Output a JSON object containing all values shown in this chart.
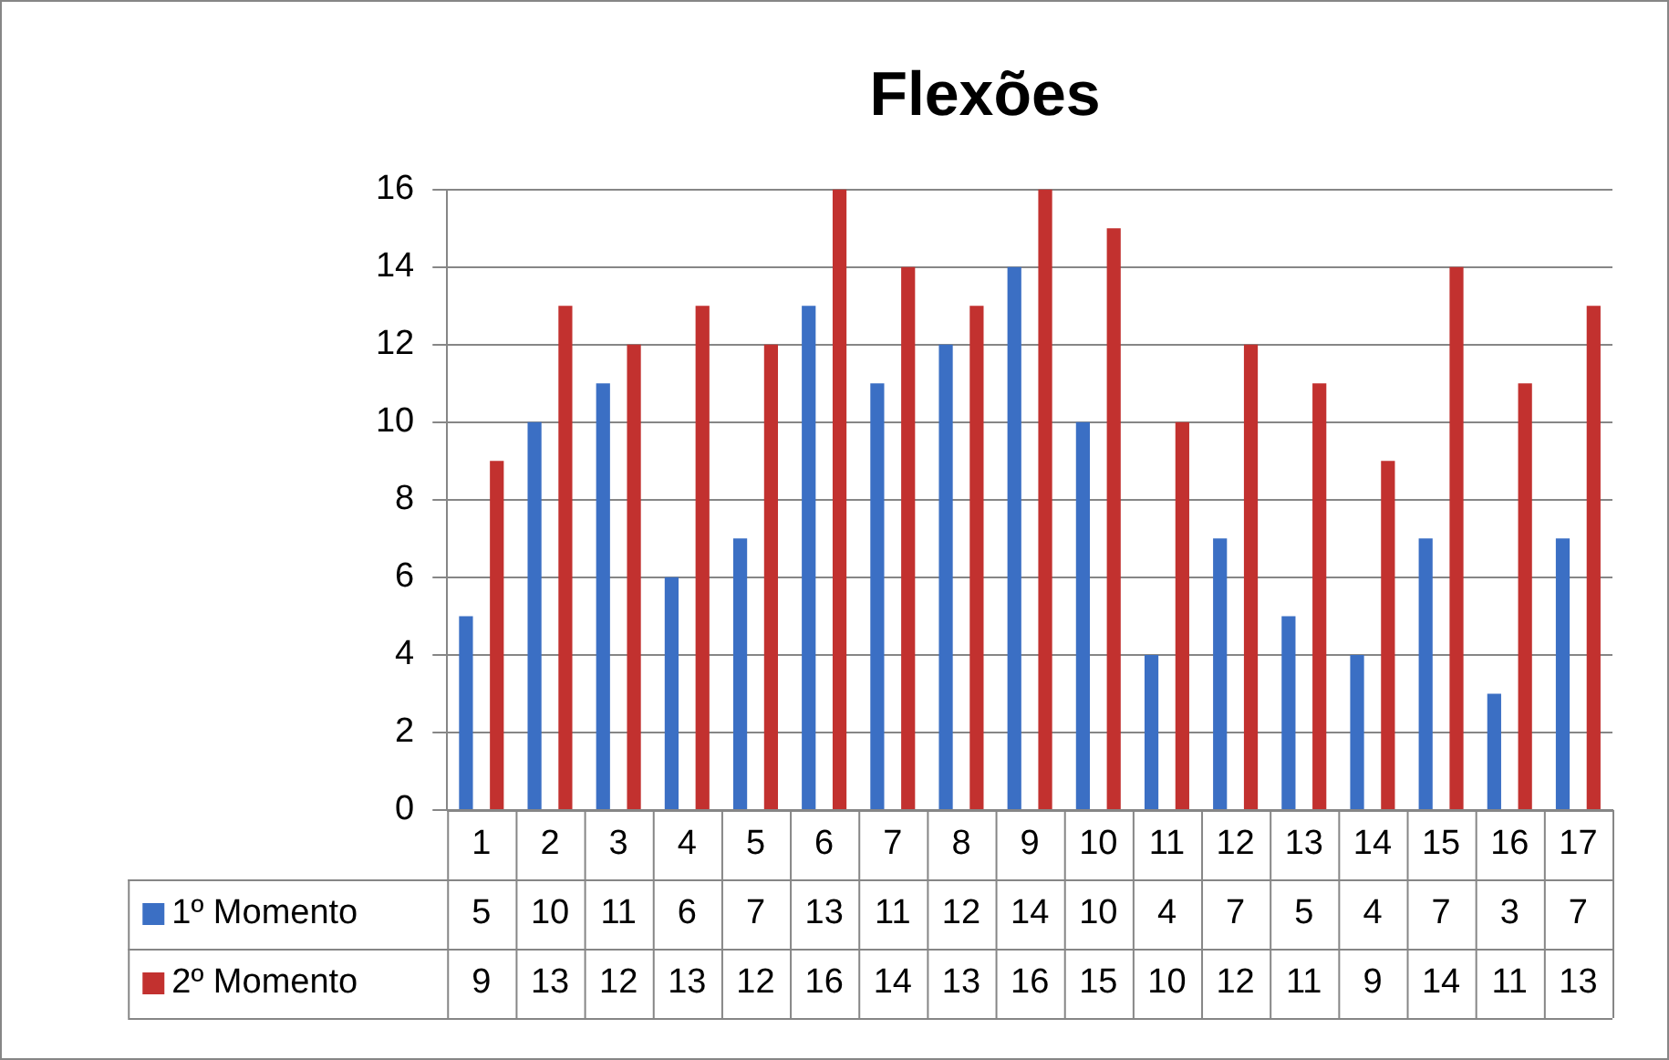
{
  "chart_data": {
    "type": "bar",
    "title": "Flexões",
    "categories": [
      "1",
      "2",
      "3",
      "4",
      "5",
      "6",
      "7",
      "8",
      "9",
      "10",
      "11",
      "12",
      "13",
      "14",
      "15",
      "16",
      "17"
    ],
    "series": [
      {
        "name": "1º Momento",
        "color": "#3b6fc4",
        "values": [
          5,
          10,
          11,
          6,
          7,
          13,
          11,
          12,
          14,
          10,
          4,
          7,
          5,
          4,
          7,
          3,
          7
        ]
      },
      {
        "name": "2º Momento",
        "color": "#c2312f",
        "values": [
          9,
          13,
          12,
          13,
          12,
          16,
          14,
          13,
          16,
          15,
          10,
          12,
          11,
          9,
          14,
          11,
          13
        ]
      }
    ],
    "ylim": [
      0,
      16
    ],
    "yticks": [
      0,
      2,
      4,
      6,
      8,
      10,
      12,
      14,
      16
    ],
    "grid": "y",
    "legend": "bottom",
    "data_labels": true
  }
}
